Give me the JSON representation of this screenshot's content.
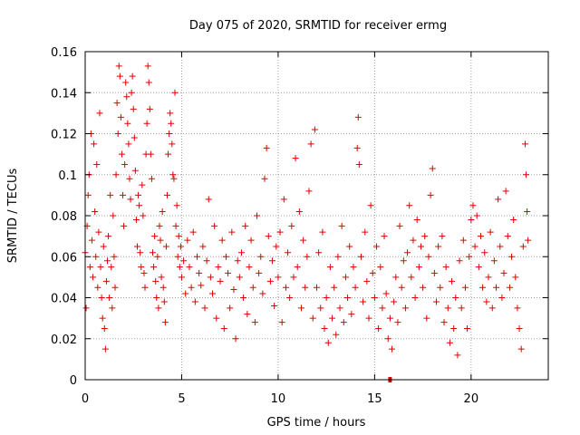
{
  "chart_data": {
    "type": "scatter",
    "title": "Day 075 of 2020, SRMTID for receiver ermg",
    "xlabel": "GPS time / hours",
    "ylabel": "SRMTID / TECUs",
    "xlim": [
      0,
      24
    ],
    "ylim": [
      0,
      0.16
    ],
    "xticks": [
      0,
      5,
      10,
      15,
      20
    ],
    "xtick_labels": [
      "0",
      "5",
      "10",
      "15",
      "20"
    ],
    "yticks": [
      0,
      0.02,
      0.04,
      0.06,
      0.08,
      0.1,
      0.12,
      0.14,
      0.16
    ],
    "ytick_labels": [
      "0",
      "0.02",
      "0.04",
      "0.06",
      "0.08",
      "0.1",
      "0.12",
      "0.14",
      "0.16"
    ],
    "grid": true,
    "marker": "+",
    "marker_color": "#e00000",
    "series": [
      {
        "name": "SRMTID",
        "points": [
          [
            0.0,
            0.062
          ],
          [
            0.05,
            0.035
          ],
          [
            0.1,
            0.075
          ],
          [
            0.15,
            0.09
          ],
          [
            0.2,
            0.1
          ],
          [
            0.25,
            0.055
          ],
          [
            0.3,
            0.12
          ],
          [
            0.35,
            0.068
          ],
          [
            0.4,
            0.05
          ],
          [
            0.45,
            0.115
          ],
          [
            0.5,
            0.082
          ],
          [
            0.55,
            0.06
          ],
          [
            0.6,
            0.105
          ],
          [
            0.65,
            0.045
          ],
          [
            0.7,
            0.072
          ],
          [
            0.75,
            0.13
          ],
          [
            0.8,
            0.055
          ],
          [
            0.85,
            0.04
          ],
          [
            0.9,
            0.03
          ],
          [
            0.95,
            0.065
          ],
          [
            1.0,
            0.025
          ],
          [
            1.05,
            0.015
          ],
          [
            1.1,
            0.048
          ],
          [
            1.15,
            0.058
          ],
          [
            1.2,
            0.07
          ],
          [
            1.25,
            0.04
          ],
          [
            1.3,
            0.09
          ],
          [
            1.35,
            0.055
          ],
          [
            1.4,
            0.035
          ],
          [
            1.45,
            0.08
          ],
          [
            1.5,
            0.06
          ],
          [
            1.55,
            0.045
          ],
          [
            1.6,
            0.1
          ],
          [
            1.65,
            0.135
          ],
          [
            1.7,
            0.12
          ],
          [
            1.75,
            0.153
          ],
          [
            1.8,
            0.148
          ],
          [
            1.85,
            0.128
          ],
          [
            1.9,
            0.11
          ],
          [
            1.95,
            0.09
          ],
          [
            2.0,
            0.075
          ],
          [
            2.05,
            0.105
          ],
          [
            2.1,
            0.145
          ],
          [
            2.15,
            0.138
          ],
          [
            2.2,
            0.125
          ],
          [
            2.25,
            0.115
          ],
          [
            2.3,
            0.098
          ],
          [
            2.35,
            0.088
          ],
          [
            2.4,
            0.14
          ],
          [
            2.45,
            0.148
          ],
          [
            2.5,
            0.132
          ],
          [
            2.55,
            0.118
          ],
          [
            2.6,
            0.102
          ],
          [
            2.65,
            0.078
          ],
          [
            2.7,
            0.065
          ],
          [
            2.75,
            0.09
          ],
          [
            2.8,
            0.085
          ],
          [
            2.85,
            0.062
          ],
          [
            2.9,
            0.055
          ],
          [
            2.95,
            0.095
          ],
          [
            3.0,
            0.08
          ],
          [
            3.05,
            0.052
          ],
          [
            3.1,
            0.045
          ],
          [
            3.15,
            0.11
          ],
          [
            3.2,
            0.125
          ],
          [
            3.25,
            0.153
          ],
          [
            3.3,
            0.145
          ],
          [
            3.35,
            0.132
          ],
          [
            3.4,
            0.11
          ],
          [
            3.45,
            0.098
          ],
          [
            3.5,
            0.062
          ],
          [
            3.55,
            0.055
          ],
          [
            3.6,
            0.07
          ],
          [
            3.65,
            0.048
          ],
          [
            3.7,
            0.04
          ],
          [
            3.75,
            0.06
          ],
          [
            3.8,
            0.035
          ],
          [
            3.85,
            0.075
          ],
          [
            3.9,
            0.068
          ],
          [
            3.95,
            0.05
          ],
          [
            4.0,
            0.082
          ],
          [
            4.05,
            0.045
          ],
          [
            4.1,
            0.038
          ],
          [
            4.15,
            0.028
          ],
          [
            4.2,
            0.065
          ],
          [
            4.25,
            0.09
          ],
          [
            4.3,
            0.11
          ],
          [
            4.35,
            0.12
          ],
          [
            4.4,
            0.13
          ],
          [
            4.45,
            0.125
          ],
          [
            4.5,
            0.115
          ],
          [
            4.55,
            0.1
          ],
          [
            4.6,
            0.098
          ],
          [
            4.65,
            0.14
          ],
          [
            4.7,
            0.075
          ],
          [
            4.75,
            0.085
          ],
          [
            4.8,
            0.06
          ],
          [
            4.85,
            0.07
          ],
          [
            4.9,
            0.055
          ],
          [
            4.95,
            0.065
          ],
          [
            5.0,
            0.05
          ],
          [
            5.1,
            0.058
          ],
          [
            5.2,
            0.042
          ],
          [
            5.3,
            0.068
          ],
          [
            5.4,
            0.055
          ],
          [
            5.5,
            0.045
          ],
          [
            5.6,
            0.072
          ],
          [
            5.7,
            0.038
          ],
          [
            5.8,
            0.06
          ],
          [
            5.9,
            0.052
          ],
          [
            6.0,
            0.046
          ],
          [
            6.1,
            0.065
          ],
          [
            6.2,
            0.035
          ],
          [
            6.3,
            0.058
          ],
          [
            6.4,
            0.088
          ],
          [
            6.5,
            0.05
          ],
          [
            6.6,
            0.042
          ],
          [
            6.7,
            0.075
          ],
          [
            6.8,
            0.03
          ],
          [
            6.9,
            0.055
          ],
          [
            7.0,
            0.048
          ],
          [
            7.1,
            0.068
          ],
          [
            7.2,
            0.025
          ],
          [
            7.3,
            0.06
          ],
          [
            7.4,
            0.052
          ],
          [
            7.5,
            0.035
          ],
          [
            7.6,
            0.072
          ],
          [
            7.7,
            0.044
          ],
          [
            7.8,
            0.02
          ],
          [
            7.9,
            0.058
          ],
          [
            8.0,
            0.05
          ],
          [
            8.1,
            0.062
          ],
          [
            8.2,
            0.04
          ],
          [
            8.3,
            0.075
          ],
          [
            8.4,
            0.032
          ],
          [
            8.5,
            0.055
          ],
          [
            8.6,
            0.068
          ],
          [
            8.7,
            0.045
          ],
          [
            8.8,
            0.028
          ],
          [
            8.9,
            0.08
          ],
          [
            9.0,
            0.052
          ],
          [
            9.1,
            0.06
          ],
          [
            9.2,
            0.042
          ],
          [
            9.3,
            0.098
          ],
          [
            9.4,
            0.113
          ],
          [
            9.5,
            0.07
          ],
          [
            9.6,
            0.048
          ],
          [
            9.7,
            0.058
          ],
          [
            9.8,
            0.036
          ],
          [
            9.9,
            0.065
          ],
          [
            10.0,
            0.05
          ],
          [
            10.1,
            0.072
          ],
          [
            10.2,
            0.028
          ],
          [
            10.3,
            0.088
          ],
          [
            10.4,
            0.045
          ],
          [
            10.5,
            0.062
          ],
          [
            10.6,
            0.04
          ],
          [
            10.7,
            0.075
          ],
          [
            10.8,
            0.05
          ],
          [
            10.9,
            0.108
          ],
          [
            11.0,
            0.055
          ],
          [
            11.1,
            0.082
          ],
          [
            11.2,
            0.035
          ],
          [
            11.3,
            0.068
          ],
          [
            11.4,
            0.045
          ],
          [
            11.5,
            0.06
          ],
          [
            11.6,
            0.092
          ],
          [
            11.7,
            0.115
          ],
          [
            11.8,
            0.03
          ],
          [
            11.9,
            0.122
          ],
          [
            12.0,
            0.045
          ],
          [
            12.1,
            0.062
          ],
          [
            12.2,
            0.035
          ],
          [
            12.3,
            0.072
          ],
          [
            12.4,
            0.025
          ],
          [
            12.5,
            0.04
          ],
          [
            12.6,
            0.018
          ],
          [
            12.7,
            0.055
          ],
          [
            12.8,
            0.03
          ],
          [
            12.9,
            0.045
          ],
          [
            13.0,
            0.022
          ],
          [
            13.1,
            0.06
          ],
          [
            13.2,
            0.035
          ],
          [
            13.3,
            0.075
          ],
          [
            13.4,
            0.028
          ],
          [
            13.5,
            0.05
          ],
          [
            13.6,
            0.04
          ],
          [
            13.7,
            0.065
          ],
          [
            13.8,
            0.032
          ],
          [
            13.9,
            0.055
          ],
          [
            14.0,
            0.045
          ],
          [
            14.1,
            0.113
          ],
          [
            14.15,
            0.128
          ],
          [
            14.2,
            0.105
          ],
          [
            14.3,
            0.06
          ],
          [
            14.4,
            0.038
          ],
          [
            14.5,
            0.072
          ],
          [
            14.6,
            0.048
          ],
          [
            14.7,
            0.03
          ],
          [
            14.8,
            0.085
          ],
          [
            14.9,
            0.052
          ],
          [
            15.0,
            0.04
          ],
          [
            15.1,
            0.065
          ],
          [
            15.2,
            0.025
          ],
          [
            15.3,
            0.055
          ],
          [
            15.4,
            0.035
          ],
          [
            15.5,
            0.07
          ],
          [
            15.6,
            0.042
          ],
          [
            15.7,
            0.02
          ],
          [
            15.8,
            0.03
          ],
          [
            15.9,
            0.015
          ],
          [
            16.0,
            0.038
          ],
          [
            16.1,
            0.05
          ],
          [
            16.2,
            0.028
          ],
          [
            16.3,
            0.075
          ],
          [
            16.4,
            0.045
          ],
          [
            16.5,
            0.058
          ],
          [
            16.6,
            0.035
          ],
          [
            16.7,
            0.062
          ],
          [
            16.8,
            0.085
          ],
          [
            16.9,
            0.05
          ],
          [
            17.0,
            0.068
          ],
          [
            17.1,
            0.04
          ],
          [
            17.2,
            0.078
          ],
          [
            17.3,
            0.055
          ],
          [
            17.4,
            0.065
          ],
          [
            17.5,
            0.045
          ],
          [
            17.6,
            0.07
          ],
          [
            17.7,
            0.03
          ],
          [
            17.8,
            0.06
          ],
          [
            17.9,
            0.09
          ],
          [
            18.0,
            0.103
          ],
          [
            18.1,
            0.052
          ],
          [
            18.2,
            0.038
          ],
          [
            18.3,
            0.065
          ],
          [
            18.4,
            0.045
          ],
          [
            18.5,
            0.07
          ],
          [
            18.6,
            0.028
          ],
          [
            18.7,
            0.055
          ],
          [
            18.8,
            0.035
          ],
          [
            18.9,
            0.018
          ],
          [
            19.0,
            0.048
          ],
          [
            19.1,
            0.025
          ],
          [
            19.2,
            0.04
          ],
          [
            19.3,
            0.012
          ],
          [
            19.4,
            0.058
          ],
          [
            19.5,
            0.035
          ],
          [
            19.6,
            0.068
          ],
          [
            19.7,
            0.045
          ],
          [
            19.8,
            0.025
          ],
          [
            19.9,
            0.06
          ],
          [
            20.0,
            0.078
          ],
          [
            20.1,
            0.085
          ],
          [
            20.2,
            0.065
          ],
          [
            20.3,
            0.08
          ],
          [
            20.4,
            0.055
          ],
          [
            20.5,
            0.07
          ],
          [
            20.6,
            0.045
          ],
          [
            20.7,
            0.062
          ],
          [
            20.8,
            0.038
          ],
          [
            20.9,
            0.05
          ],
          [
            21.0,
            0.072
          ],
          [
            21.1,
            0.035
          ],
          [
            21.2,
            0.058
          ],
          [
            21.3,
            0.045
          ],
          [
            21.4,
            0.088
          ],
          [
            21.5,
            0.065
          ],
          [
            21.6,
            0.04
          ],
          [
            21.7,
            0.052
          ],
          [
            21.8,
            0.092
          ],
          [
            21.9,
            0.07
          ],
          [
            22.0,
            0.045
          ],
          [
            22.1,
            0.06
          ],
          [
            22.2,
            0.078
          ],
          [
            22.3,
            0.05
          ],
          [
            22.4,
            0.035
          ],
          [
            22.5,
            0.025
          ],
          [
            22.6,
            0.015
          ],
          [
            22.7,
            0.065
          ],
          [
            22.8,
            0.115
          ],
          [
            22.85,
            0.1
          ],
          [
            22.9,
            0.082
          ],
          [
            22.95,
            0.068
          ]
        ]
      }
    ],
    "outlier_markers": [
      [
        15.8,
        0.0
      ]
    ]
  }
}
